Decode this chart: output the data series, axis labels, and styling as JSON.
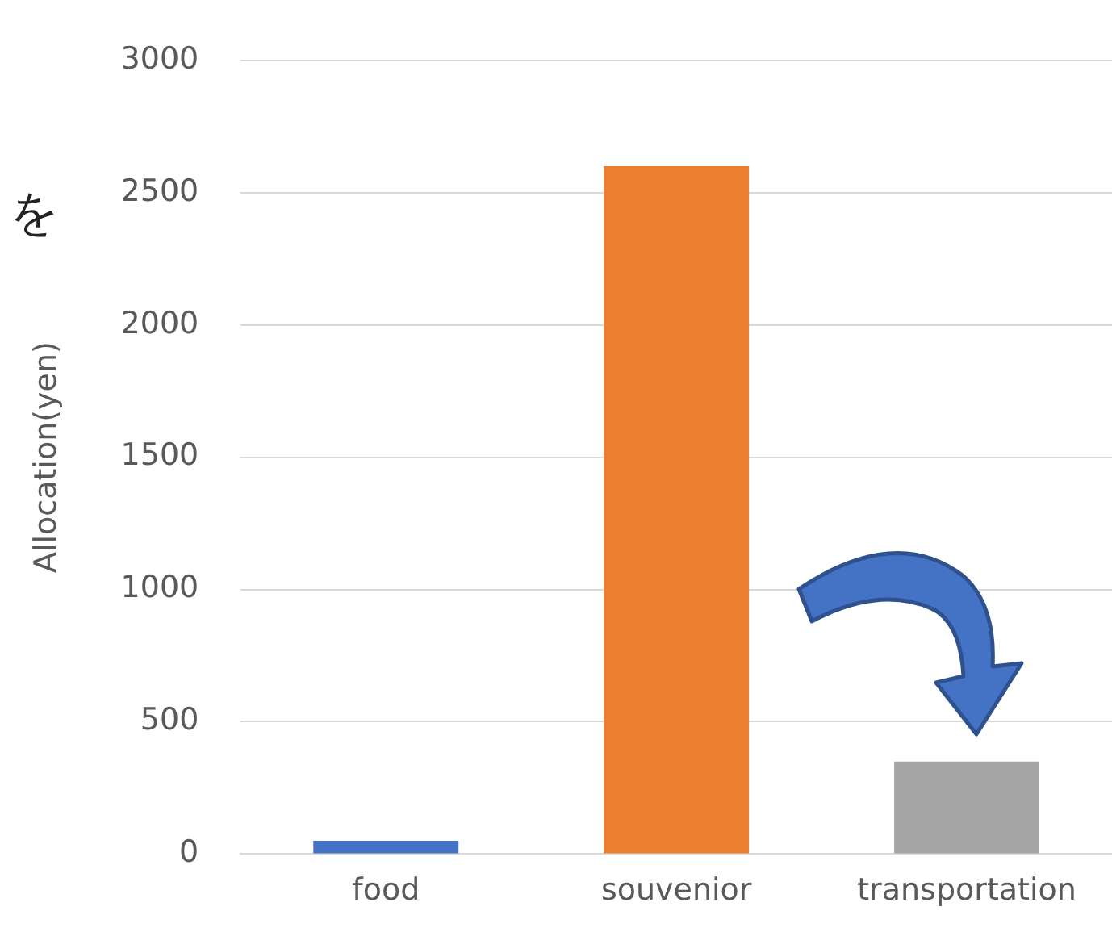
{
  "chart_data": {
    "type": "bar",
    "ylabel": "Allocation(yen)",
    "categories": [
      "food",
      "souvenior",
      "transportation"
    ],
    "values": [
      50,
      2600,
      350
    ],
    "colors": [
      "#4472c4",
      "#ed7d31",
      "#a5a5a5"
    ],
    "ylim": [
      0,
      3000
    ],
    "yticks": [
      0,
      500,
      1000,
      1500,
      2000,
      2500,
      3000
    ],
    "grid": "y",
    "annotations": [
      "を"
    ]
  }
}
